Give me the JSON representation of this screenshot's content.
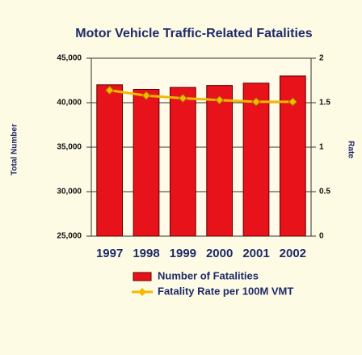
{
  "chart_data": {
    "type": "bar_line",
    "title": "Motor Vehicle Traffic-Related Fatalities",
    "ylabel": "Total Number",
    "y2label": "Rate",
    "categories": [
      "1997",
      "1998",
      "1999",
      "2000",
      "2001",
      "2002"
    ],
    "series": [
      {
        "name": "Number of Fatalities",
        "type": "bar",
        "color": "#e8121a",
        "values": [
          42013,
          41501,
          41717,
          41945,
          42196,
          43005
        ]
      },
      {
        "name": "Fatality Rate per 100M VMT",
        "type": "line",
        "axis": "y2",
        "color": "#f5b800",
        "values": [
          1.64,
          1.58,
          1.55,
          1.53,
          1.51,
          1.51
        ]
      }
    ],
    "ylim": [
      25000,
      45000
    ],
    "yticks": [
      {
        "value": 25000,
        "label": "25,000"
      },
      {
        "value": 30000,
        "label": "30,000"
      },
      {
        "value": 35000,
        "label": "35,000"
      },
      {
        "value": 40000,
        "label": "40,000"
      },
      {
        "value": 45000,
        "label": "45,000"
      }
    ],
    "y2lim": [
      0,
      2
    ],
    "y2ticks": [
      0,
      0.5,
      1,
      1.5,
      2
    ],
    "grid": true
  }
}
